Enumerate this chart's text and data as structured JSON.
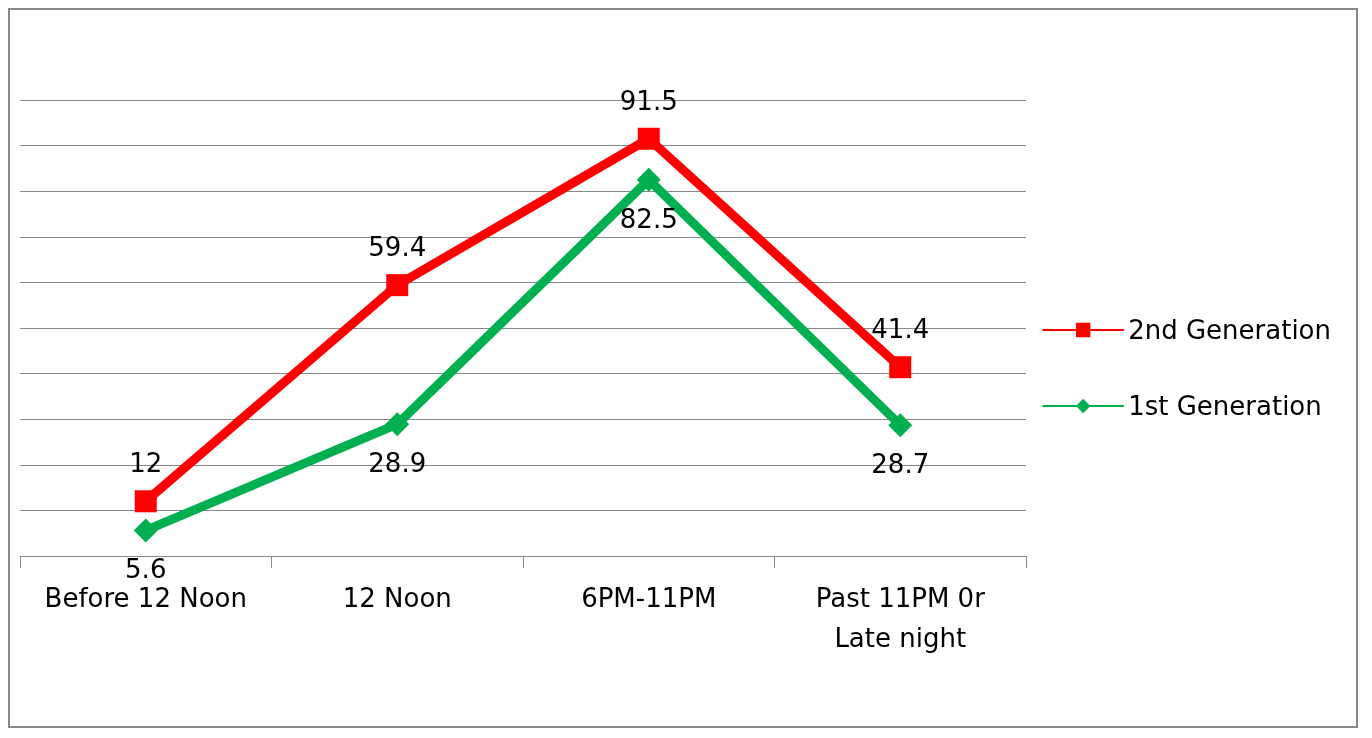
{
  "chart_data": {
    "type": "line",
    "categories": [
      "Before 12 Noon",
      "12 Noon",
      "6PM-11PM",
      "Past 11PM 0r\nLate night"
    ],
    "series": [
      {
        "name": "2nd Generation",
        "color": "#ff0000",
        "marker": "square",
        "values": [
          12,
          59.4,
          91.5,
          41.4
        ]
      },
      {
        "name": "1st Generation",
        "color": "#00b050",
        "marker": "diamond",
        "values": [
          5.6,
          28.9,
          82.5,
          28.7
        ]
      }
    ],
    "ylim": [
      0,
      100
    ],
    "yticks": [
      {
        "value": 0,
        "label": null
      },
      {
        "value": 10,
        "label": null
      },
      {
        "value": 20,
        "label": null
      },
      {
        "value": 30,
        "label": null
      },
      {
        "value": 40,
        "label": null
      },
      {
        "value": 50,
        "label": null
      },
      {
        "value": 60,
        "label": null
      },
      {
        "value": 70,
        "label": null
      },
      {
        "value": 80,
        "label": null
      },
      {
        "value": 90,
        "label": null
      },
      {
        "value": 100,
        "label": null
      }
    ],
    "grid": "y",
    "legend": "right",
    "data_labels": true,
    "tick_labels": "x",
    "line_style": "solid"
  }
}
